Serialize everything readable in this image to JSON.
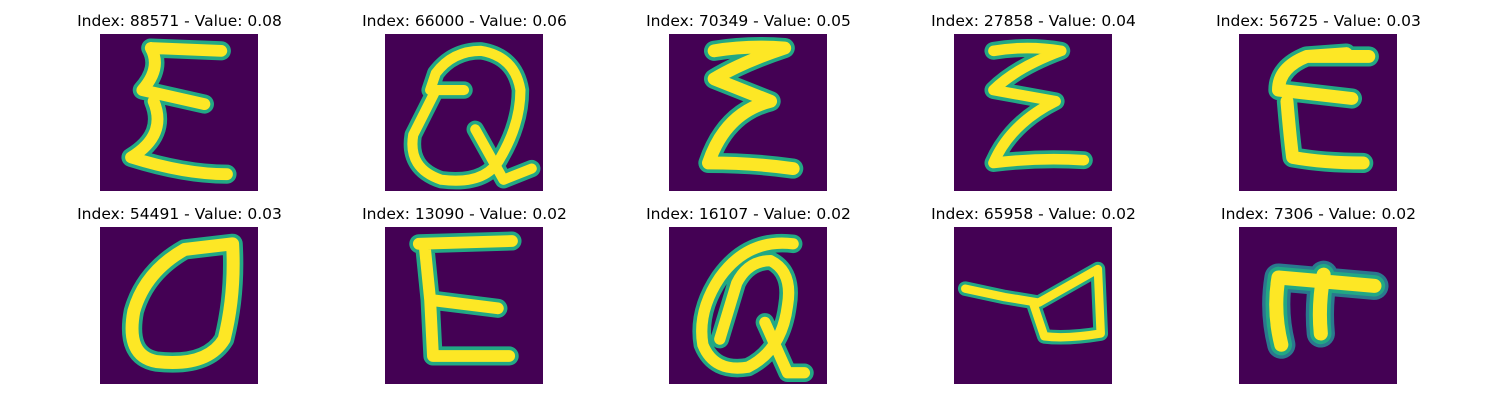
{
  "figure": {
    "colors": {
      "background": "#440154",
      "stroke_core": "#fde725",
      "stroke_mid": "#7ad151",
      "stroke_edge": "#22a884",
      "stroke_outer": "#2a788e"
    },
    "samples": [
      {
        "title": "Index: 88571 - Value: 0.08",
        "glyph": "epsilon-shape"
      },
      {
        "title": "Index: 66000 - Value: 0.06",
        "glyph": "q-shape"
      },
      {
        "title": "Index: 70349 - Value: 0.05",
        "glyph": "epsilon-shape"
      },
      {
        "title": "Index: 27858 - Value: 0.04",
        "glyph": "epsilon-shape"
      },
      {
        "title": "Index: 56725 - Value: 0.03",
        "glyph": "e-shape"
      },
      {
        "title": "Index: 54491 - Value: 0.03",
        "glyph": "o-shape"
      },
      {
        "title": "Index: 13090 - Value: 0.02",
        "glyph": "e-shape"
      },
      {
        "title": "Index: 16107 - Value: 0.02",
        "glyph": "q-shape"
      },
      {
        "title": "Index: 65958 - Value: 0.02",
        "glyph": "a-shape"
      },
      {
        "title": "Index: 7306 - Value: 0.02",
        "glyph": "pi-shape"
      }
    ]
  }
}
